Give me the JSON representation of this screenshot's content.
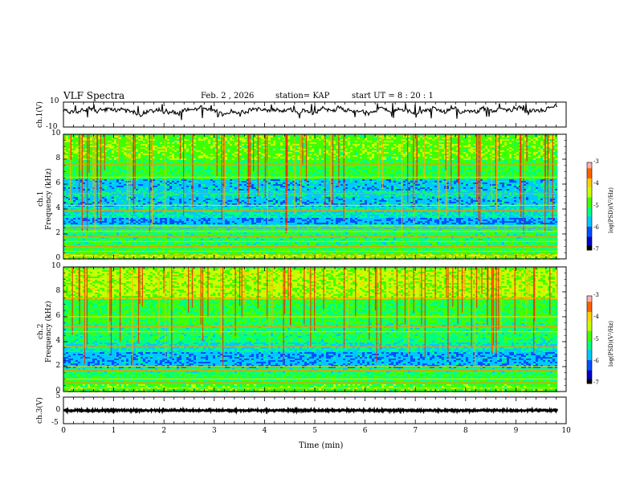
{
  "header": {
    "title": "VLF Spectra",
    "date": "Feb. 2  , 2026",
    "station": "station= KAP",
    "start_ut": "start  UT =   8  : 20 : 1"
  },
  "colors": {
    "waveform": "#000000",
    "colormap": [
      "#000000",
      "#0000c8",
      "#0050ff",
      "#00c8ff",
      "#00ff80",
      "#40ff00",
      "#c8ff00",
      "#ffd000",
      "#ff6000",
      "#ff0000",
      "#ffb0b0",
      "#ffffff"
    ]
  },
  "chart_data": [
    {
      "name": "ch1-waveform",
      "type": "line",
      "ylabel": "ch.1(V)",
      "ylim": [
        -10,
        10
      ],
      "yticks": [
        "10",
        "-10"
      ],
      "x_range_min": [
        0,
        9.83
      ],
      "baseline": 2.5,
      "amplitude": 2.5
    },
    {
      "name": "ch1-spectrogram",
      "type": "heatmap",
      "ylabel": "ch.1\nFrequency  (kHz)",
      "ylabel_lines": [
        "ch.1",
        "Frequency  (kHz)"
      ],
      "ylim": [
        0,
        10
      ],
      "yticks": [
        "0",
        "2",
        "4",
        "6",
        "8",
        "10"
      ],
      "bands": [
        {
          "f0": 0,
          "f1": 0.5,
          "level": 5.2
        },
        {
          "f0": 0.5,
          "f1": 1.2,
          "level": 4.6
        },
        {
          "f0": 1.2,
          "f1": 2.4,
          "level": 4.2
        },
        {
          "f0": 2.4,
          "f1": 2.8,
          "level": 3.4
        },
        {
          "f0": 2.8,
          "f1": 3.4,
          "level": 2.6
        },
        {
          "f0": 3.4,
          "f1": 4.2,
          "level": 3.6
        },
        {
          "f0": 4.2,
          "f1": 5.0,
          "level": 3.0
        },
        {
          "f0": 5.0,
          "f1": 5.6,
          "level": 3.4
        },
        {
          "f0": 5.6,
          "f1": 6.4,
          "level": 3.0
        },
        {
          "f0": 6.4,
          "f1": 8.0,
          "level": 4.6
        },
        {
          "f0": 8.0,
          "f1": 10.0,
          "level": 5.2
        }
      ],
      "lines_khz": [
        0.2,
        0.4,
        0.6,
        1.0,
        1.4,
        1.8,
        2.2,
        2.5,
        2.65,
        3.9,
        4.3,
        5.25,
        6.55,
        7.6
      ],
      "colorbar": {
        "label": "log(PSD)(V²/Hz)",
        "ticks": [
          "-3",
          "-4",
          "-5",
          "-6",
          "-7"
        ],
        "range": [
          -7,
          -3
        ]
      }
    },
    {
      "name": "ch2-spectrogram",
      "type": "heatmap",
      "ylabel": "ch.2\nFrequency  (kHz)",
      "ylabel_lines": [
        "ch.2",
        "Frequency  (kHz)"
      ],
      "ylim": [
        0,
        10
      ],
      "yticks": [
        "0",
        "2",
        "4",
        "6",
        "8",
        "10"
      ],
      "bands": [
        {
          "f0": 0,
          "f1": 0.6,
          "level": 5.0
        },
        {
          "f0": 0.6,
          "f1": 1.6,
          "level": 4.4
        },
        {
          "f0": 1.6,
          "f1": 2.0,
          "level": 4.2
        },
        {
          "f0": 2.0,
          "f1": 3.2,
          "level": 2.8
        },
        {
          "f0": 3.2,
          "f1": 4.0,
          "level": 3.6
        },
        {
          "f0": 4.0,
          "f1": 5.5,
          "level": 4.2
        },
        {
          "f0": 5.5,
          "f1": 7.5,
          "level": 4.6
        },
        {
          "f0": 7.5,
          "f1": 10.0,
          "level": 5.8
        }
      ],
      "lines_khz": [
        0.3,
        0.7,
        1.0,
        1.7,
        2.0,
        3.6,
        4.8,
        5.2,
        6.0,
        7.5
      ],
      "colorbar": {
        "label": "log(PSD)(V²/Hz)",
        "ticks": [
          "-3",
          "-4",
          "-5",
          "-6",
          "-7"
        ],
        "range": [
          -7,
          -3
        ]
      }
    },
    {
      "name": "ch3-waveform",
      "type": "line",
      "ylabel": "ch.3(V)",
      "ylim": [
        -5,
        5
      ],
      "yticks": [
        "5",
        "0",
        "-5"
      ],
      "x_range_min": [
        0,
        9.83
      ],
      "baseline": 0,
      "amplitude": 0.35
    }
  ],
  "xaxis": {
    "label": "Time  (min)",
    "range": [
      0,
      10
    ],
    "ticks": [
      "0",
      "1",
      "2",
      "3",
      "4",
      "5",
      "6",
      "7",
      "8",
      "9",
      "10"
    ]
  }
}
